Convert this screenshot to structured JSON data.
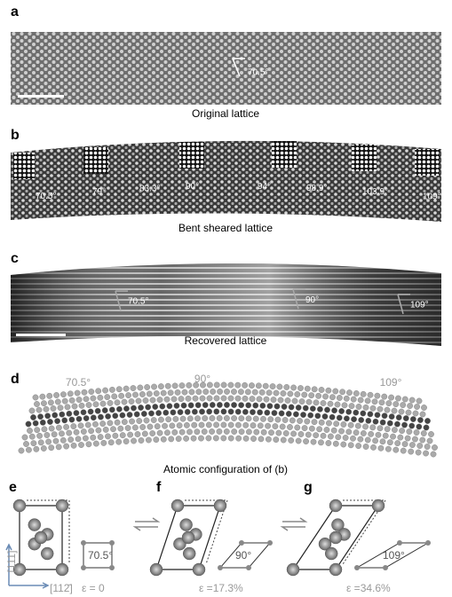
{
  "panels": [
    {
      "label": "a",
      "caption": "Original lattice",
      "annotations": [
        "70.5°"
      ]
    },
    {
      "label": "b",
      "caption": "Bent sheared lattice",
      "annotations": [
        "70.5°",
        "79°",
        "83.3°",
        "90°",
        "94°",
        "98.9°",
        "103.9°",
        "109°"
      ]
    },
    {
      "label": "c",
      "caption": "Recovered lattice",
      "annotations": [
        "70.5°",
        "90°",
        "109°"
      ]
    },
    {
      "label": "d",
      "caption": "Atomic configuration of (b)",
      "annotations": [
        "70.5°",
        "90°",
        "109°"
      ]
    },
    {
      "label": "e",
      "angle": "70.5°",
      "strain": "ε = 0",
      "axis_vertical": "[111]",
      "axis_horizontal": "[112̄]"
    },
    {
      "label": "f",
      "angle": "90°",
      "strain": "ε =17.3%"
    },
    {
      "label": "g",
      "angle": "109°",
      "strain": "ε =34.6%"
    }
  ]
}
